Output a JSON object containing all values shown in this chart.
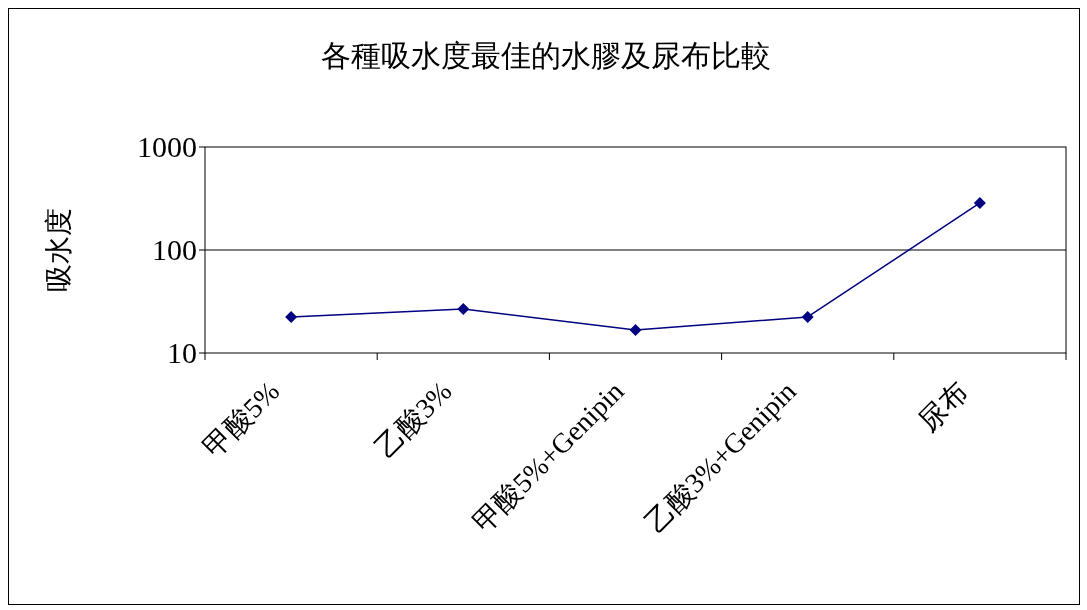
{
  "chart_data": {
    "type": "line",
    "title": "各種吸水度最佳的水膠及尿布比較",
    "ylabel": "吸水度",
    "categories": [
      "甲酸5%",
      "乙酸3%",
      "甲酸5%+Genipin",
      "乙酸3%+Genipin",
      "尿布"
    ],
    "series": [
      {
        "color": "#000080",
        "values": [
          22.4,
          26.7,
          16.7,
          22.4,
          286
        ]
      }
    ],
    "ylim": [
      10,
      1000
    ],
    "yticks": [
      10,
      100,
      1000
    ],
    "log": true,
    "grid": "y",
    "marker": "diamond",
    "line_style": "solid"
  }
}
